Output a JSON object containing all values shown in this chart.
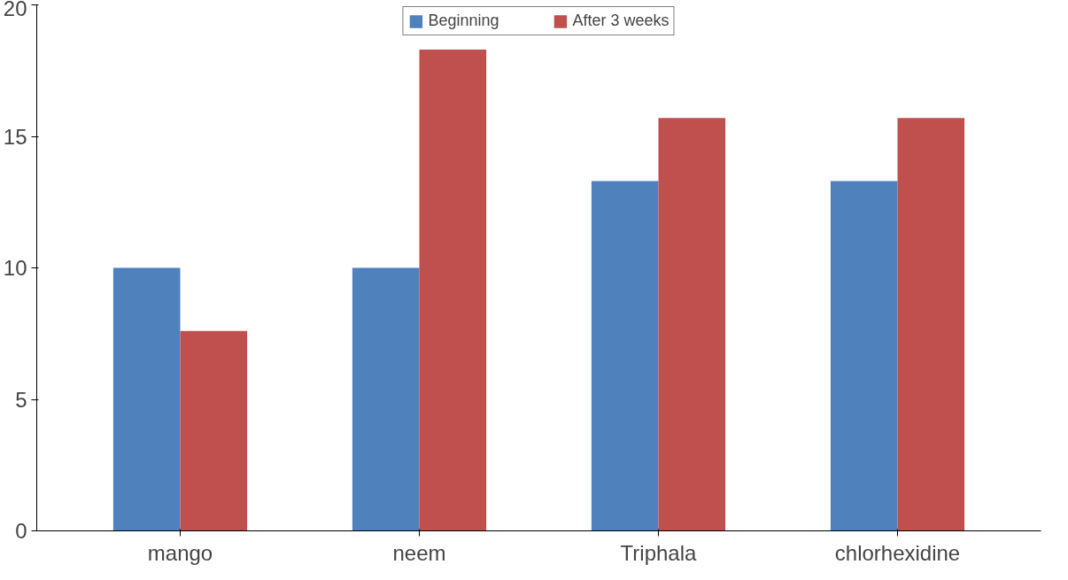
{
  "chart_data": {
    "type": "bar",
    "categories": [
      "mango",
      "neem",
      "Triphala",
      "chlorhexidine"
    ],
    "series": [
      {
        "name": "Beginning",
        "color": "#4f81bd",
        "values": [
          10,
          10,
          13.3,
          13.3
        ]
      },
      {
        "name": "After 3 weeks",
        "color": "#c0504d",
        "values": [
          7.6,
          18.3,
          15.7,
          15.7
        ]
      }
    ],
    "ylim": [
      0,
      20
    ],
    "yticks": [
      0,
      5,
      10,
      15,
      20
    ],
    "grid": false,
    "legend": "top"
  }
}
